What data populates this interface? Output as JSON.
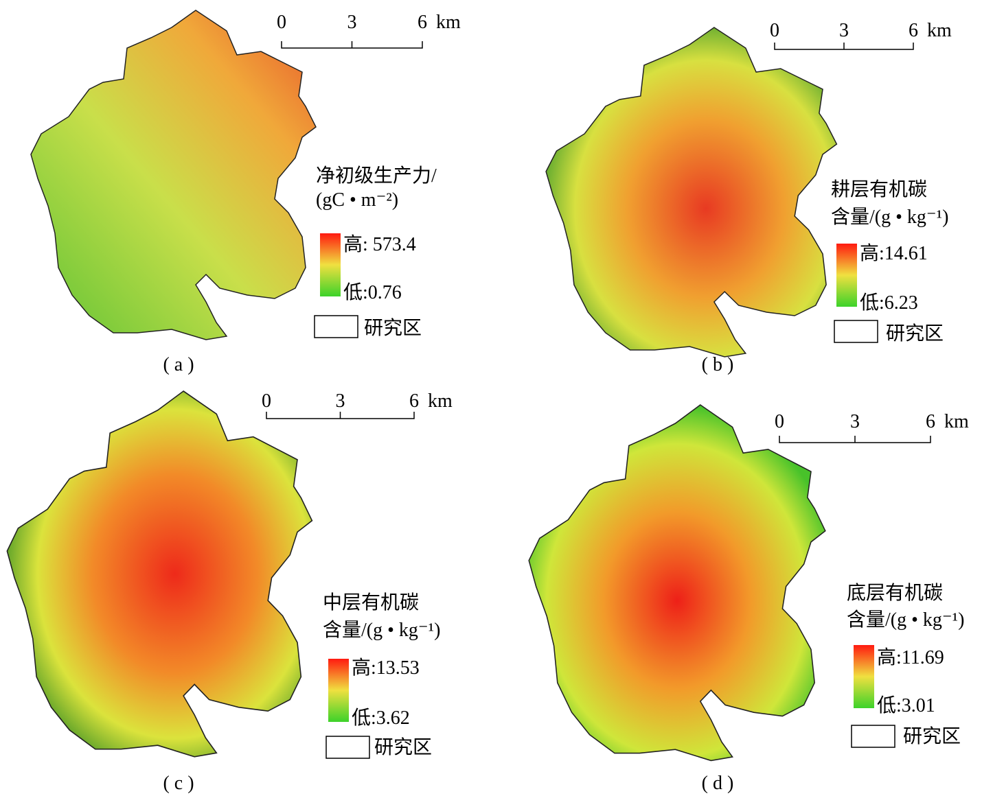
{
  "panels": [
    {
      "label": "( a )",
      "scale": {
        "ticks": [
          "0",
          "3",
          "6"
        ],
        "unit": "km"
      },
      "legend": {
        "title": [
          "净初级生产力/",
          "(gC • m⁻²)"
        ],
        "high": "高: 573.4",
        "low": "低:0.76",
        "area": "研究区"
      }
    },
    {
      "label": "( b )",
      "scale": {
        "ticks": [
          "0",
          "3",
          "6"
        ],
        "unit": "km"
      },
      "legend": {
        "title": [
          "耕层有机碳",
          "含量/(g • kg⁻¹)"
        ],
        "high": "高:14.61",
        "low": "低:6.23",
        "area": "研究区"
      }
    },
    {
      "label": "( c )",
      "scale": {
        "ticks": [
          "0",
          "3",
          "6"
        ],
        "unit": "km"
      },
      "legend": {
        "title": [
          "中层有机碳",
          "含量/(g • kg⁻¹)"
        ],
        "high": "高:13.53",
        "low": "低:3.62",
        "area": "研究区"
      }
    },
    {
      "label": "( d )",
      "scale": {
        "ticks": [
          "0",
          "3",
          "6"
        ],
        "unit": "km"
      },
      "legend": {
        "title": [
          "底层有机碳",
          "含量/(g • kg⁻¹)"
        ],
        "high": "高:11.69",
        "low": "低:3.01",
        "area": "研究区"
      }
    }
  ]
}
